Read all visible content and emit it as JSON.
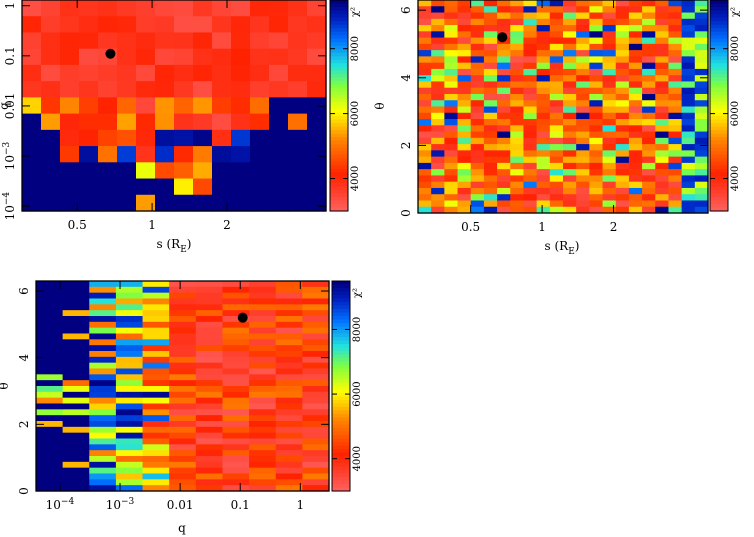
{
  "colors": {
    "low": "#ff5a5a",
    "mid_red": "#ff2a00",
    "orange": "#ff9900",
    "yellow": "#ffff00",
    "green": "#80ff40",
    "cyan": "#20c8ff",
    "blue": "#0050ff",
    "navy": "#000080",
    "marker": "#000000"
  },
  "chart_data": [
    {
      "type": "heatmap",
      "id": "panel-s-q",
      "xlabel": "s (R_E)",
      "xlabel_main": "s (R",
      "xlabel_sub": "E",
      "xlabel_close": ")",
      "ylabel": "q",
      "x_scale": "log",
      "y_scale": "log",
      "xlim": [
        0.3,
        5.0
      ],
      "ylim": [
        8e-05,
        1.3
      ],
      "x_ticks": [
        {
          "v": 0.5,
          "label": "0.5"
        },
        {
          "v": 1,
          "label": "1"
        },
        {
          "v": 2,
          "label": "2"
        }
      ],
      "y_ticks": [
        {
          "v": 0.0001,
          "base": "10",
          "exp": "−4"
        },
        {
          "v": 0.001,
          "base": "10",
          "exp": "−3"
        },
        {
          "v": 0.01,
          "label": "0.01"
        },
        {
          "v": 0.1,
          "label": "0.1"
        },
        {
          "v": 1,
          "label": "1"
        }
      ],
      "best_fit": {
        "x": 0.68,
        "y": 0.11
      },
      "colorbar": {
        "label": "χ²",
        "min": 3000,
        "max": 9500,
        "ticks": [
          4000,
          6000,
          8000
        ]
      }
    },
    {
      "type": "heatmap",
      "id": "panel-s-theta",
      "xlabel": "s (R_E)",
      "xlabel_main": "s (R",
      "xlabel_sub": "E",
      "xlabel_close": ")",
      "ylabel": "θ",
      "x_scale": "log",
      "y_scale": "linear",
      "xlim": [
        0.3,
        5.0
      ],
      "ylim": [
        0,
        6.3
      ],
      "x_ticks": [
        {
          "v": 0.5,
          "label": "0.5"
        },
        {
          "v": 1,
          "label": "1"
        },
        {
          "v": 2,
          "label": "2"
        }
      ],
      "y_ticks": [
        {
          "v": 0,
          "label": "0"
        },
        {
          "v": 2,
          "label": "2"
        },
        {
          "v": 4,
          "label": "4"
        },
        {
          "v": 6,
          "label": "6"
        }
      ],
      "best_fit": {
        "x": 0.68,
        "y": 5.2
      },
      "colorbar": {
        "label": "χ²",
        "min": 3000,
        "max": 9500,
        "ticks": [
          4000,
          6000,
          8000
        ]
      }
    },
    {
      "type": "heatmap",
      "id": "panel-q-theta",
      "xlabel": "q",
      "ylabel": "θ",
      "x_scale": "log",
      "y_scale": "linear",
      "xlim": [
        4e-05,
        3
      ],
      "ylim": [
        0,
        6.3
      ],
      "x_ticks": [
        {
          "v": 0.0001,
          "base": "10",
          "exp": "−4"
        },
        {
          "v": 0.001,
          "base": "10",
          "exp": "−3"
        },
        {
          "v": 0.01,
          "label": "0.01"
        },
        {
          "v": 0.1,
          "label": "0.1"
        },
        {
          "v": 1,
          "label": "1"
        }
      ],
      "y_ticks": [
        {
          "v": 0,
          "label": "0"
        },
        {
          "v": 2,
          "label": "2"
        },
        {
          "v": 4,
          "label": "4"
        },
        {
          "v": 6,
          "label": "6"
        }
      ],
      "best_fit": {
        "x": 0.11,
        "y": 5.2
      },
      "colorbar": {
        "label": "χ²",
        "min": 3000,
        "max": 9500,
        "ticks": [
          4000,
          6000,
          8000
        ]
      }
    }
  ]
}
